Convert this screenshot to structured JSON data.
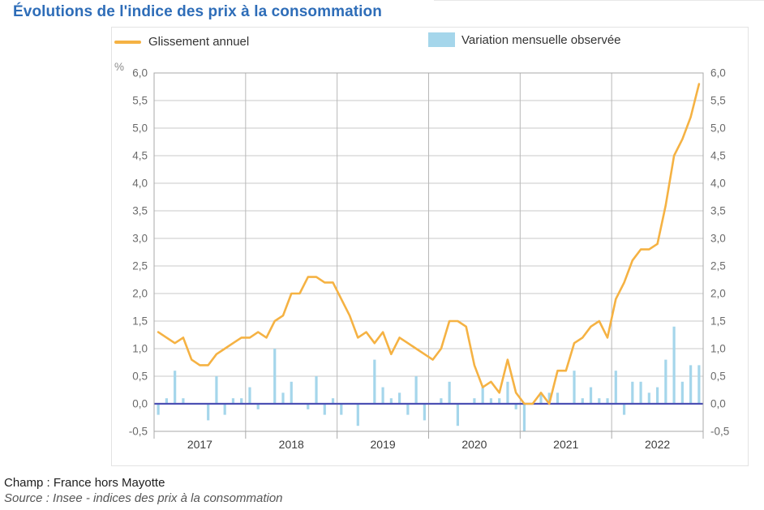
{
  "page": {
    "title": "Évolutions de l'indice des prix à la consommation",
    "footer": {
      "champ": "Champ : France hors Mayotte",
      "source": "Source : Insee - indices des prix à la consommation"
    }
  },
  "legend": {
    "line_label": "Glissement annuel",
    "bar_label": "Variation mensuelle observée"
  },
  "colors": {
    "title_blue": "#2e6db8",
    "line_orange": "#f5b243",
    "bar_blue": "#a5d6eb",
    "zero_line_indigo": "#4c50b4",
    "grid_gray": "#cacaca",
    "vgrid_gray": "#b8b8b8",
    "frame_gray": "#a9a9a9",
    "axis_text_gray": "#6b6b6b",
    "year_text_gray": "#3c3c3c"
  },
  "chart_data": {
    "type": "line+bar",
    "title": "Évolutions de l'indice des prix à la consommation",
    "unit_label": "%",
    "ylim": [
      -0.5,
      6.0
    ],
    "ytick_step": 0.5,
    "ytick_labels": [
      "-0,5",
      "0,0",
      "0,5",
      "1,0",
      "1,5",
      "2,0",
      "2,5",
      "3,0",
      "3,5",
      "4,0",
      "4,5",
      "5,0",
      "5,5",
      "6,0"
    ],
    "years": [
      "2017",
      "2018",
      "2019",
      "2020",
      "2021",
      "2022"
    ],
    "months_per_year": 12,
    "x_slots": 72,
    "grid": "on",
    "legend_position": "top",
    "series": [
      {
        "name": "Glissement annuel",
        "type": "line",
        "color": "#f5b243",
        "values": [
          1.3,
          1.2,
          1.1,
          1.2,
          0.8,
          0.7,
          0.7,
          0.9,
          1.0,
          1.1,
          1.2,
          1.2,
          1.3,
          1.2,
          1.5,
          1.6,
          2.0,
          2.0,
          2.3,
          2.3,
          2.2,
          2.2,
          1.9,
          1.6,
          1.2,
          1.3,
          1.1,
          1.3,
          0.9,
          1.2,
          1.1,
          1.0,
          0.9,
          0.8,
          1.0,
          1.5,
          1.5,
          1.4,
          0.7,
          0.3,
          0.4,
          0.2,
          0.8,
          0.2,
          0.0,
          0.0,
          0.2,
          0.0,
          0.6,
          0.6,
          1.1,
          1.2,
          1.4,
          1.5,
          1.2,
          1.9,
          2.2,
          2.6,
          2.8,
          2.8,
          2.9,
          3.6,
          4.5,
          4.8,
          5.2,
          5.8
        ]
      },
      {
        "name": "Variation mensuelle observée",
        "type": "bar",
        "color": "#a5d6eb",
        "values": [
          -0.2,
          0.1,
          0.6,
          0.1,
          0.0,
          0.0,
          -0.3,
          0.5,
          -0.2,
          0.1,
          0.1,
          0.3,
          -0.1,
          0.0,
          1.0,
          0.2,
          0.4,
          0.0,
          -0.1,
          0.5,
          -0.2,
          0.1,
          -0.2,
          0.0,
          -0.4,
          0.0,
          0.8,
          0.3,
          0.1,
          0.2,
          -0.2,
          0.5,
          -0.3,
          0.0,
          0.1,
          0.4,
          -0.4,
          0.0,
          0.1,
          0.3,
          0.1,
          0.1,
          0.4,
          -0.1,
          -0.5,
          0.0,
          0.2,
          0.2,
          0.2,
          0.0,
          0.6,
          0.1,
          0.3,
          0.1,
          0.1,
          0.6,
          -0.2,
          0.4,
          0.4,
          0.2,
          0.3,
          0.8,
          1.4,
          0.4,
          0.7,
          0.7
        ]
      }
    ]
  }
}
